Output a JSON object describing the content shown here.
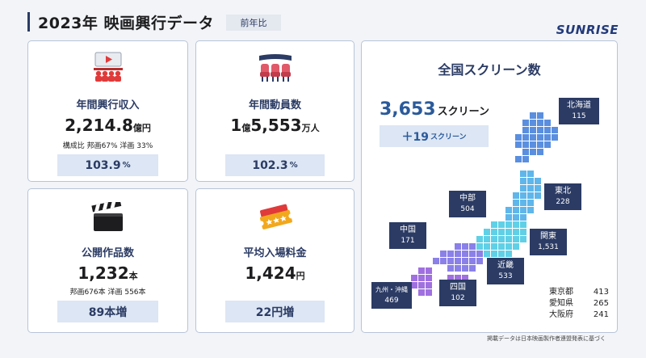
{
  "header": {
    "title": "2023年 映画興行データ",
    "badge": "前年比",
    "logo": "SUNRISE"
  },
  "cards": {
    "box_office": {
      "label": "年間興行収入",
      "value": "2,214.8",
      "unit": "億円",
      "sub": "構成比 邦画67% 洋画 33%",
      "change": "103.9",
      "change_unit": "%",
      "icon": "cinema-screen-icon"
    },
    "attendance": {
      "label": "年間動員数",
      "value_prefix": "1",
      "prefix_unit": "億",
      "value": "5,553",
      "unit": "万人",
      "change": "102.3",
      "change_unit": "%",
      "icon": "theater-seats-icon"
    },
    "releases": {
      "label": "公開作品数",
      "value": "1,232",
      "unit": "本",
      "sub": "邦画676本 洋画 556本",
      "change": "89本増",
      "icon": "clapperboard-icon"
    },
    "ticket_price": {
      "label": "平均入場料金",
      "value": "1,424",
      "unit": "円",
      "change": "22円増",
      "icon": "ticket-icon"
    }
  },
  "screens": {
    "title": "全国スクリーン数",
    "total": "3,653",
    "total_unit": "スクリーン",
    "delta": "＋19",
    "delta_unit": "スクリーン",
    "regions": [
      {
        "name": "北海道",
        "value": "115"
      },
      {
        "name": "東北",
        "value": "228"
      },
      {
        "name": "中部",
        "value": "504"
      },
      {
        "name": "関東",
        "value": "1,531"
      },
      {
        "name": "中国",
        "value": "171"
      },
      {
        "name": "近畿",
        "value": "533"
      },
      {
        "name": "九州・沖縄",
        "value": "469"
      },
      {
        "name": "四国",
        "value": "102"
      }
    ],
    "prefectures": [
      {
        "name": "東京都",
        "value": "413"
      },
      {
        "name": "愛知県",
        "value": "265"
      },
      {
        "name": "大阪府",
        "value": "241"
      }
    ]
  },
  "footnote": "掲載データは日本映画製作者連盟発表に基づく",
  "colors": {
    "navy": "#2b3b64",
    "accent_blue": "#2b5a9a",
    "light_blue": "#dce6f4",
    "icon_red": "#e03a3a",
    "icon_gold": "#f2a81d",
    "map_blue": "#5a8fe0",
    "map_cyan": "#5fd0e6",
    "map_purple": "#a070e0"
  }
}
